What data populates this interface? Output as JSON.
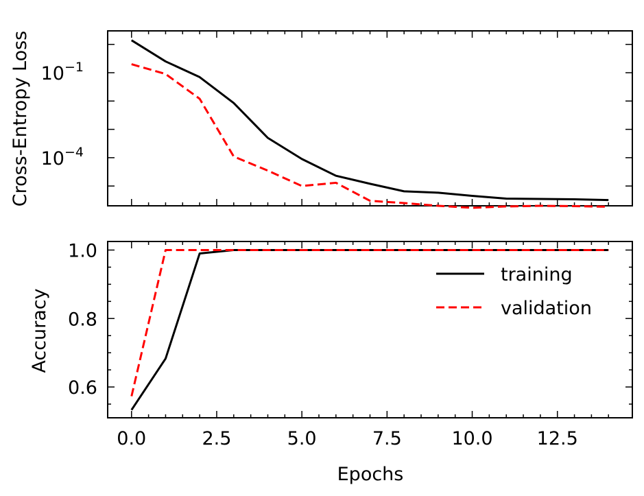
{
  "chart_data": [
    {
      "type": "line",
      "panel": "top",
      "ylabel": "Cross-Entropy Loss",
      "yscale": "log",
      "ylim": [
        2e-06,
        3
      ],
      "xlim": [
        -0.7,
        14.7
      ],
      "yticks": [
        {
          "value": 0.1,
          "base": "10",
          "exp": "−1"
        },
        {
          "value": 0.0001,
          "base": "10",
          "exp": "−4"
        }
      ],
      "grid": false,
      "x": [
        0,
        1,
        2,
        3,
        4,
        5,
        6,
        7,
        8,
        9,
        10,
        11,
        12,
        13,
        14
      ],
      "series": [
        {
          "name": "training",
          "color": "#000000",
          "dash": "solid",
          "values": [
            1.4,
            0.25,
            0.07,
            0.0085,
            0.0005,
            9e-05,
            2.3e-05,
            1.2e-05,
            6.5e-06,
            5.8e-06,
            4.5e-06,
            3.6e-06,
            3.5e-06,
            3.4e-06,
            3.2e-06
          ]
        },
        {
          "name": "validation",
          "color": "#ff0000",
          "dash": "dashed",
          "values": [
            0.2,
            0.09,
            0.012,
            0.00011,
            3.5e-05,
            1e-05,
            1.3e-05,
            3e-06,
            2.5e-06,
            2e-06,
            1.7e-06,
            1.9e-06,
            2e-06,
            1.95e-06,
            1.85e-06
          ]
        }
      ]
    },
    {
      "type": "line",
      "panel": "bottom",
      "xlabel": "Epochs",
      "ylabel": "Accuracy",
      "ylim": [
        0.51,
        1.025
      ],
      "xlim": [
        -0.7,
        14.7
      ],
      "yticks": [
        "0.6",
        "0.8",
        "1.0"
      ],
      "xticks": [
        "0.0",
        "2.5",
        "5.0",
        "7.5",
        "10.0",
        "12.5"
      ],
      "grid": false,
      "legend": "upper-right",
      "x": [
        0,
        1,
        2,
        3,
        4,
        5,
        6,
        7,
        8,
        9,
        10,
        11,
        12,
        13,
        14
      ],
      "series": [
        {
          "name": "training",
          "color": "#000000",
          "dash": "solid",
          "values": [
            0.533,
            0.683,
            0.99,
            1.0,
            1.0,
            1.0,
            1.0,
            1.0,
            1.0,
            1.0,
            1.0,
            1.0,
            1.0,
            1.0,
            1.0
          ]
        },
        {
          "name": "validation",
          "color": "#ff0000",
          "dash": "dashed",
          "values": [
            0.573,
            1.0,
            1.0,
            1.0,
            1.0,
            1.0,
            1.0,
            1.0,
            1.0,
            1.0,
            1.0,
            1.0,
            1.0,
            1.0,
            1.0
          ]
        }
      ]
    }
  ]
}
